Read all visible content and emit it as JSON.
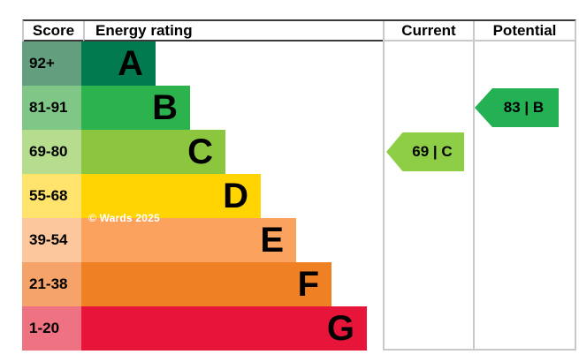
{
  "header": {
    "score": "Score",
    "energy_rating": "Energy rating",
    "current": "Current",
    "potential": "Potential"
  },
  "bands": [
    {
      "range": "92+",
      "letter": "A",
      "bar_color": "#007a4e",
      "range_color": "#639e7e"
    },
    {
      "range": "81-91",
      "letter": "B",
      "bar_color": "#2db34e",
      "range_color": "#7fc687"
    },
    {
      "range": "69-80",
      "letter": "C",
      "bar_color": "#8cc63f",
      "range_color": "#b6dc8d"
    },
    {
      "range": "55-68",
      "letter": "D",
      "bar_color": "#ffd400",
      "range_color": "#ffe36d"
    },
    {
      "range": "39-54",
      "letter": "E",
      "bar_color": "#faa25e",
      "range_color": "#fcc79c"
    },
    {
      "range": "21-38",
      "letter": "F",
      "bar_color": "#ef8023",
      "range_color": "#f5a368"
    },
    {
      "range": "1-20",
      "letter": "G",
      "bar_color": "#e8153b",
      "range_color": "#ee7282"
    }
  ],
  "current": {
    "label": "69 | C",
    "score": 69,
    "band": "C",
    "color": "#8dce46"
  },
  "potential": {
    "label": "83 | B",
    "score": 83,
    "band": "B",
    "color": "#24b153"
  },
  "watermark": "© Wards 2025",
  "chart_data": {
    "type": "bar",
    "subtype": "epc-energy-rating",
    "orientation": "horizontal",
    "title": "Energy rating",
    "columns": [
      "Score",
      "Energy rating",
      "Current",
      "Potential"
    ],
    "categories": [
      "A",
      "B",
      "C",
      "D",
      "E",
      "F",
      "G"
    ],
    "score_ranges": [
      "92+",
      "81-91",
      "69-80",
      "55-68",
      "39-54",
      "21-38",
      "1-20"
    ],
    "bar_lengths_relative": [
      1,
      2,
      3,
      4,
      5,
      6,
      7
    ],
    "band_colors": [
      "#007a4e",
      "#2db34e",
      "#8cc63f",
      "#ffd400",
      "#faa25e",
      "#ef8023",
      "#e8153b"
    ],
    "score_cell_colors": [
      "#639e7e",
      "#7fc687",
      "#b6dc8d",
      "#ffe36d",
      "#fcc79c",
      "#f5a368",
      "#ee7282"
    ],
    "markers": [
      {
        "column": "Current",
        "score": 69,
        "band": "C",
        "color": "#8dce46"
      },
      {
        "column": "Potential",
        "score": 83,
        "band": "B",
        "color": "#24b153"
      }
    ],
    "annotations": [
      "© Wards 2025"
    ],
    "legend_position": "none",
    "grid": "column-separators-only"
  }
}
